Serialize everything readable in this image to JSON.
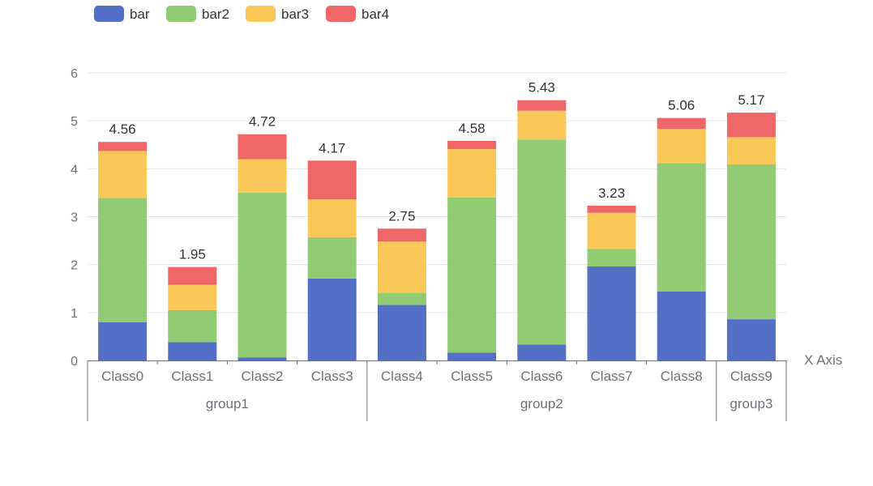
{
  "chart_data": {
    "type": "bar",
    "stacked": true,
    "title": "",
    "xlabel": "X Axis",
    "ylabel": "",
    "ylim": [
      0,
      6
    ],
    "yticks": [
      "0",
      "1",
      "2",
      "3",
      "4",
      "5",
      "6"
    ],
    "categories": [
      "Class0",
      "Class1",
      "Class2",
      "Class3",
      "Class4",
      "Class5",
      "Class6",
      "Class7",
      "Class8",
      "Class9"
    ],
    "groups": [
      {
        "name": "group1",
        "categories": [
          "Class0",
          "Class1",
          "Class2",
          "Class3"
        ]
      },
      {
        "name": "group2",
        "categories": [
          "Class4",
          "Class5",
          "Class6",
          "Class7",
          "Class8"
        ]
      },
      {
        "name": "group3",
        "categories": [
          "Class9"
        ]
      }
    ],
    "series": [
      {
        "name": "bar",
        "color": "#5470c6",
        "values": [
          0.8,
          0.38,
          0.06,
          1.71,
          1.16,
          0.16,
          0.33,
          1.96,
          1.44,
          0.86
        ]
      },
      {
        "name": "bar2",
        "color": "#91cc75",
        "values": [
          2.59,
          0.67,
          3.44,
          0.86,
          0.25,
          3.24,
          4.28,
          0.37,
          2.68,
          3.23
        ]
      },
      {
        "name": "bar3",
        "color": "#fac858",
        "values": [
          0.98,
          0.53,
          0.7,
          0.79,
          1.07,
          1.01,
          0.6,
          0.75,
          0.71,
          0.57
        ]
      },
      {
        "name": "bar4",
        "color": "#ee6666",
        "values": [
          0.19,
          0.37,
          0.52,
          0.81,
          0.27,
          0.17,
          0.22,
          0.15,
          0.23,
          0.51
        ]
      }
    ],
    "totals": [
      "4.56",
      "1.95",
      "4.72",
      "4.17",
      "2.75",
      "4.58",
      "5.43",
      "3.23",
      "5.06",
      "5.17"
    ],
    "legend": {
      "placement": "top-left",
      "entries": [
        "bar",
        "bar2",
        "bar3",
        "bar4"
      ]
    },
    "grid": true
  }
}
